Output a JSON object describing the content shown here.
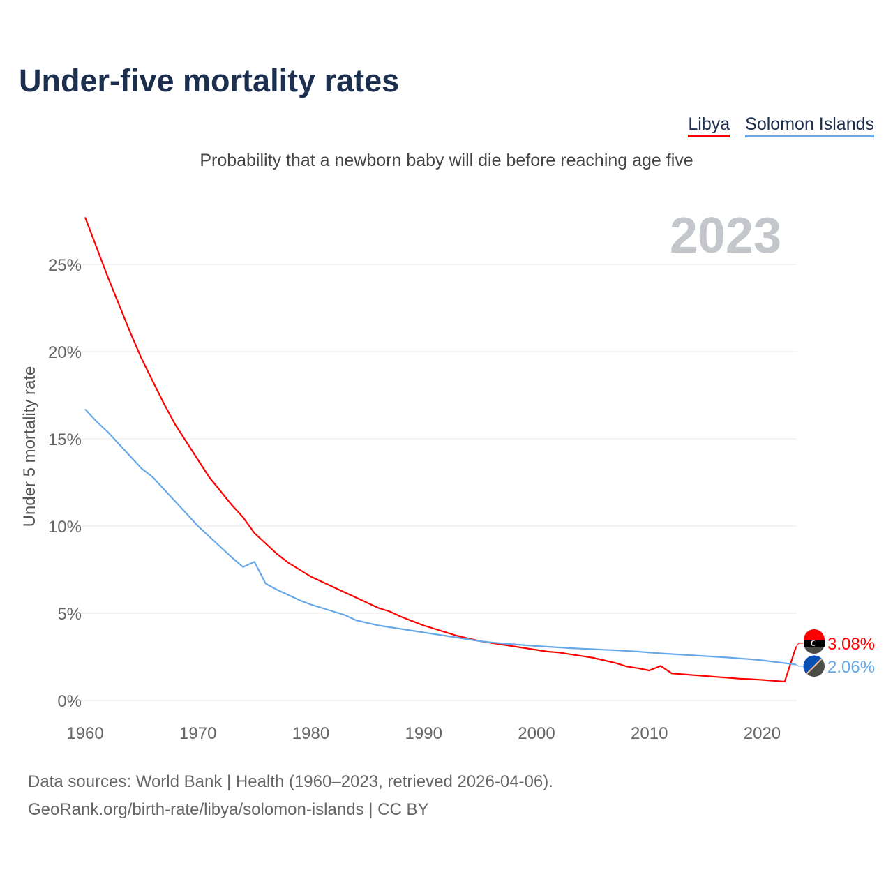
{
  "title": "Under-five mortality rates",
  "subtitle": "Probability that a newborn baby will die before reaching age five",
  "legend": [
    {
      "label": "Libya",
      "color": "#ff0000"
    },
    {
      "label": "Solomon Islands",
      "color": "#66a8e8"
    }
  ],
  "year_label": "2023",
  "source_line1": "Data sources: World Bank | Health (1960–2023, retrieved 2026-04-06).",
  "source_line2": "GeoRank.org/birth-rate/libya/solomon-islands | CC BY",
  "chart_data": {
    "type": "line",
    "title": "Under-five mortality rates",
    "ylabel": "Under 5 mortality rate",
    "xlabel": "",
    "xlim": [
      1960,
      2023
    ],
    "ylim": [
      0,
      25
    ],
    "xticks": [
      1960,
      1970,
      1980,
      1990,
      2000,
      2010,
      2020
    ],
    "yticks": [
      {
        "v": 0,
        "label": "0%"
      },
      {
        "v": 5,
        "label": "5%"
      },
      {
        "v": 10,
        "label": "10%"
      },
      {
        "v": 15,
        "label": "15%"
      },
      {
        "v": 20,
        "label": "20%"
      },
      {
        "v": 25,
        "label": "25%"
      }
    ],
    "grid": true,
    "legend_position": "top-right",
    "x_start": 1960,
    "series": [
      {
        "name": "Libya",
        "color": "#ff0000",
        "end_label": "3.08%",
        "flag": "libya-flag-icon",
        "values": [
          27.7,
          26.0,
          24.3,
          22.7,
          21.1,
          19.6,
          18.3,
          17.0,
          15.8,
          14.8,
          13.8,
          12.8,
          12.0,
          11.2,
          10.5,
          9.6,
          9.0,
          8.4,
          7.9,
          7.5,
          7.1,
          6.8,
          6.5,
          6.2,
          5.9,
          5.6,
          5.3,
          5.1,
          4.8,
          4.55,
          4.3,
          4.1,
          3.9,
          3.7,
          3.55,
          3.4,
          3.3,
          3.2,
          3.1,
          3.0,
          2.9,
          2.8,
          2.75,
          2.65,
          2.55,
          2.45,
          2.3,
          2.15,
          1.95,
          1.85,
          1.72,
          1.98,
          1.55,
          1.5,
          1.45,
          1.4,
          1.35,
          1.3,
          1.25,
          1.22,
          1.18,
          1.13,
          1.08,
          3.08
        ]
      },
      {
        "name": "Solomon Islands",
        "color": "#66a8e8",
        "end_label": "2.06%",
        "flag": "solomon-islands-flag-icon",
        "values": [
          16.7,
          16.0,
          15.4,
          14.7,
          14.0,
          13.3,
          12.8,
          12.1,
          11.4,
          10.7,
          10.0,
          9.4,
          8.8,
          8.2,
          7.65,
          7.95,
          6.7,
          6.35,
          6.05,
          5.75,
          5.5,
          5.3,
          5.1,
          4.9,
          4.6,
          4.45,
          4.3,
          4.2,
          4.1,
          4.0,
          3.9,
          3.8,
          3.7,
          3.6,
          3.5,
          3.4,
          3.33,
          3.27,
          3.22,
          3.17,
          3.12,
          3.08,
          3.04,
          3.0,
          2.97,
          2.94,
          2.91,
          2.88,
          2.84,
          2.8,
          2.75,
          2.7,
          2.66,
          2.62,
          2.58,
          2.54,
          2.5,
          2.46,
          2.41,
          2.36,
          2.3,
          2.22,
          2.14,
          2.06
        ]
      }
    ]
  }
}
